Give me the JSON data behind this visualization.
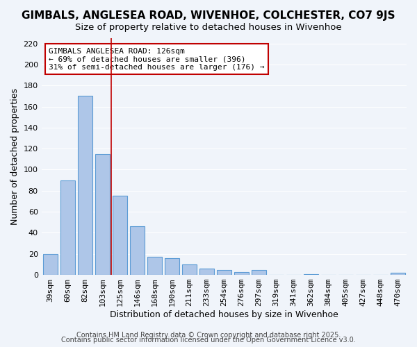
{
  "title": "GIMBALS, ANGLESEA ROAD, WIVENHOE, COLCHESTER, CO7 9JS",
  "subtitle": "Size of property relative to detached houses in Wivenhoe",
  "xlabel": "Distribution of detached houses by size in Wivenhoe",
  "ylabel": "Number of detached properties",
  "bar_labels": [
    "39sqm",
    "60sqm",
    "82sqm",
    "103sqm",
    "125sqm",
    "146sqm",
    "168sqm",
    "190sqm",
    "211sqm",
    "233sqm",
    "254sqm",
    "276sqm",
    "297sqm",
    "319sqm",
    "341sqm",
    "362sqm",
    "384sqm",
    "405sqm",
    "427sqm",
    "448sqm",
    "470sqm"
  ],
  "bar_values": [
    20,
    90,
    170,
    115,
    75,
    46,
    17,
    16,
    10,
    6,
    5,
    3,
    5,
    0,
    0,
    1,
    0,
    0,
    0,
    0,
    2
  ],
  "bar_color": "#aec6e8",
  "bar_edge_color": "#5b9bd5",
  "vline_x": 3.5,
  "vline_color": "#c00000",
  "ylim": [
    0,
    225
  ],
  "yticks": [
    0,
    20,
    40,
    60,
    80,
    100,
    120,
    140,
    160,
    180,
    200,
    220
  ],
  "annotation_line1": "GIMBALS ANGLESEA ROAD: 126sqm",
  "annotation_line2": "← 69% of detached houses are smaller (396)",
  "annotation_line3": "31% of semi-detached houses are larger (176) →",
  "annotation_box_color": "#ffffff",
  "annotation_box_edge": "#c00000",
  "footer1": "Contains HM Land Registry data © Crown copyright and database right 2025.",
  "footer2": "Contains public sector information licensed under the Open Government Licence v3.0.",
  "bg_color": "#f0f4fa",
  "grid_color": "#ffffff",
  "title_fontsize": 11,
  "subtitle_fontsize": 9.5,
  "axis_label_fontsize": 9,
  "tick_fontsize": 8,
  "annotation_fontsize": 8,
  "footer_fontsize": 7
}
